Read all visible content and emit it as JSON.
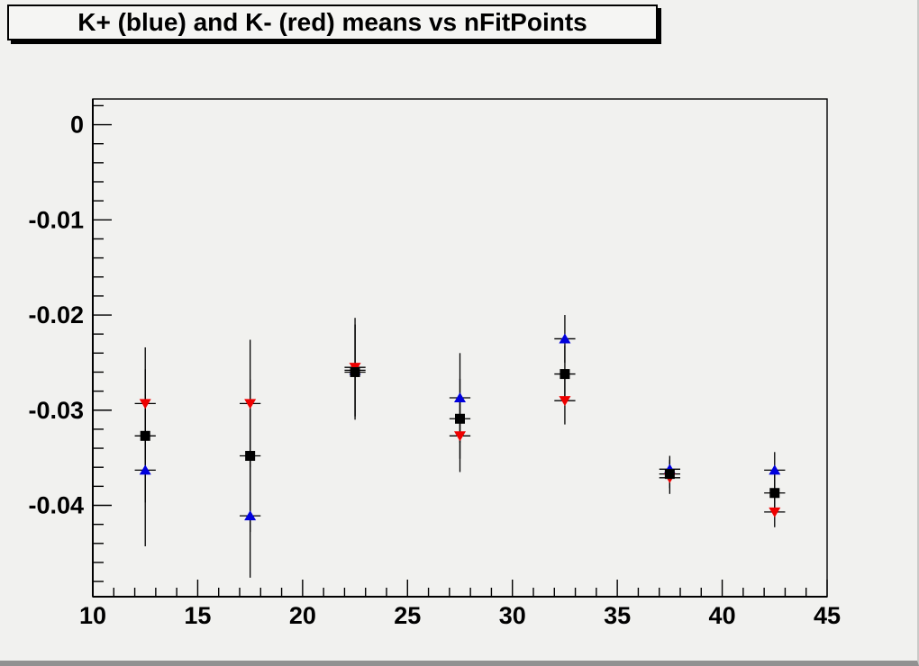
{
  "title": "K+ (blue) and K- (red) means vs nFitPoints",
  "colors": {
    "canvas_bg": "#f1f1ef",
    "frame_line": "#000000",
    "kplus_blue": "#0000dd",
    "kminus_red": "#ee0000",
    "mean_black": "#000000"
  },
  "chart_data": {
    "type": "scatter",
    "title": "K+ (blue) and K- (red) means vs nFitPoints",
    "xlabel": "nFitPoints",
    "ylabel": "",
    "xlim": [
      10,
      45
    ],
    "ylim": [
      -0.0496,
      0.0027
    ],
    "grid": false,
    "legend": "none (colors named in title)",
    "x_major_ticks": [
      10,
      15,
      20,
      25,
      30,
      35,
      40,
      45
    ],
    "x_tick_labels": [
      "10",
      "15",
      "20",
      "25",
      "30",
      "35",
      "40",
      "45"
    ],
    "x_minor_step": 1,
    "y_major_ticks": [
      0,
      -0.01,
      -0.02,
      -0.03,
      -0.04
    ],
    "y_tick_labels": [
      "0",
      "-0.01",
      "-0.02",
      "-0.03",
      "-0.04"
    ],
    "y_minor_step": 0.002,
    "x": [
      12.5,
      17.5,
      22.5,
      27.5,
      32.5,
      37.5,
      42.5
    ],
    "xerr": 0.5,
    "series": [
      {
        "name": "K+ (blue)",
        "marker": "triangle-up",
        "color": "#0000dd",
        "y": [
          -0.0363,
          -0.0411,
          -0.0258,
          -0.0287,
          -0.0225,
          -0.0362,
          -0.0363
        ],
        "yerr": [
          0.008,
          0.0065,
          0.0048,
          0.0047,
          0.0025,
          0.0014,
          0.0019
        ]
      },
      {
        "name": "K- (red)",
        "marker": "triangle-down",
        "color": "#ee0000",
        "y": [
          -0.0293,
          -0.0293,
          -0.0255,
          -0.0327,
          -0.029,
          -0.0371,
          -0.0407
        ],
        "yerr": [
          0.0059,
          0.0067,
          0.0052,
          0.0038,
          0.0025,
          0.0017,
          0.0016
        ]
      },
      {
        "name": "mean (black)",
        "marker": "square",
        "color": "#000000",
        "y": [
          -0.0327,
          -0.0348,
          -0.026,
          -0.0309,
          -0.0262,
          -0.0367,
          -0.0387
        ],
        "yerr": [
          0.007,
          0.008,
          0.005,
          0.0042,
          0.003,
          0.0015,
          0.002
        ]
      }
    ]
  }
}
